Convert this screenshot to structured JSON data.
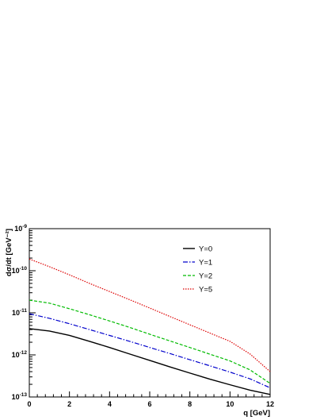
{
  "chart_data": {
    "type": "line",
    "title": "",
    "xlabel": "q [GeV]",
    "ylabel": "dσ/dt [GeV⁻²]",
    "xlim": [
      0,
      12
    ],
    "ylim": [
      1e-13,
      1e-09
    ],
    "yscale": "log",
    "grid": false,
    "legend_position": "top-right",
    "x_ticks": [
      {
        "value": 0,
        "label": "0"
      },
      {
        "value": 2,
        "label": "2"
      },
      {
        "value": 4,
        "label": "4"
      },
      {
        "value": 6,
        "label": "6"
      },
      {
        "value": 8,
        "label": "8"
      },
      {
        "value": 10,
        "label": "10"
      },
      {
        "value": 12,
        "label": "12"
      }
    ],
    "y_ticks": [
      {
        "value": 1e-13,
        "base": "10",
        "exp": "-13"
      },
      {
        "value": 1e-12,
        "base": "10",
        "exp": "-12"
      },
      {
        "value": 1e-11,
        "base": "10",
        "exp": "-11"
      },
      {
        "value": 1e-10,
        "base": "10",
        "exp": "-10"
      },
      {
        "value": 1e-09,
        "base": "10",
        "exp": "-9"
      }
    ],
    "x": [
      0,
      1,
      2,
      3,
      4,
      5,
      6,
      7,
      8,
      9,
      10,
      11,
      12
    ],
    "series": [
      {
        "name": "Y=0",
        "color": "#000000",
        "dash": "solid",
        "values": [
          4.2e-12,
          3.7e-12,
          2.9e-12,
          2.1e-12,
          1.5e-12,
          1.05e-12,
          7.4e-13,
          5.2e-13,
          3.7e-13,
          2.65e-13,
          1.95e-13,
          1.45e-13,
          1.15e-13
        ]
      },
      {
        "name": "Y=1",
        "color": "#0000cc",
        "dash": "dashdot",
        "values": [
          9.5e-12,
          7.4e-12,
          5.5e-12,
          4e-12,
          2.9e-12,
          2.1e-12,
          1.5e-12,
          1.08e-12,
          7.7e-13,
          5.5e-13,
          3.9e-13,
          2.7e-13,
          1.65e-13
        ]
      },
      {
        "name": "Y=2",
        "color": "#00bb00",
        "dash": "dashed",
        "values": [
          2e-11,
          1.7e-11,
          1.25e-11,
          9e-12,
          6.4e-12,
          4.5e-12,
          3.1e-12,
          2.15e-12,
          1.5e-12,
          1.04e-12,
          7.2e-13,
          4.4e-13,
          2.1e-13
        ]
      },
      {
        "name": "Y=5",
        "color": "#dd0000",
        "dash": "dotted",
        "values": [
          1.9e-10,
          1.25e-10,
          8e-11,
          5e-11,
          3.2e-11,
          2.05e-11,
          1.3e-11,
          8.2e-12,
          5.2e-12,
          3.3e-12,
          2.1e-12,
          1.05e-12,
          4e-13
        ]
      }
    ]
  }
}
